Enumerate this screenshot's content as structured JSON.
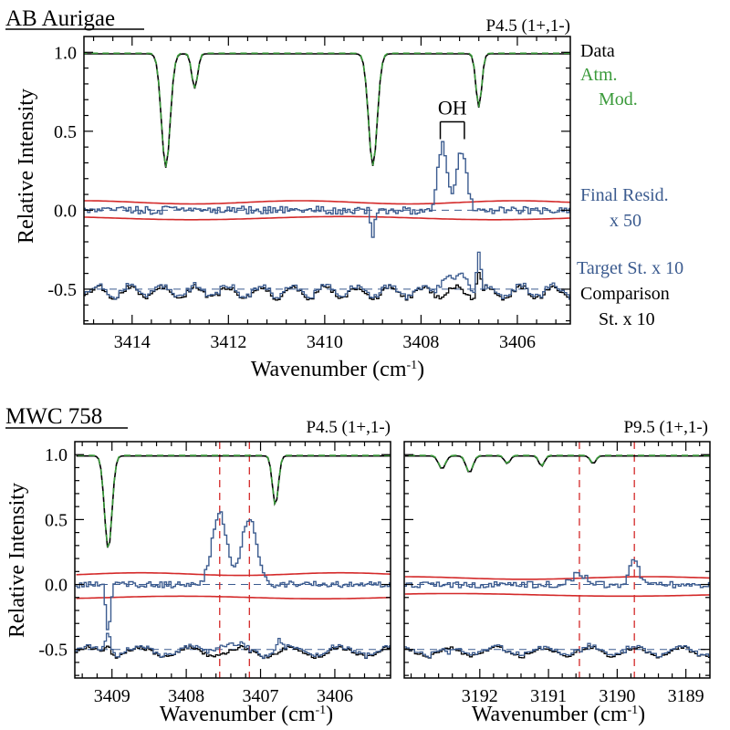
{
  "colors": {
    "data": "#000000",
    "model": "#3a9a3a",
    "residual": "#3b5b8f",
    "envelope": "#d42a2a",
    "comparison": "#000000",
    "guide": "#d42a2a"
  },
  "chart_data": [
    {
      "type": "line",
      "title": "AB Aurigae",
      "transition": "P4.5 (1+,1-)",
      "xlabel": "Wavenumber (cm",
      "xlabel_sup": "-1",
      "xlabel_end": ")",
      "ylabel": "Relative Intensity",
      "xlim": [
        3415.0,
        3404.9
      ],
      "ylim": [
        -0.72,
        1.1
      ],
      "x_reversed": true,
      "xticks": [
        "3414",
        "3412",
        "3410",
        "3408",
        "3406"
      ],
      "xtick_values": [
        3414,
        3412,
        3410,
        3408,
        3406
      ],
      "yticks": [
        "1.0",
        "0.5",
        "0.0",
        "-0.5"
      ],
      "ytick_values": [
        1.0,
        0.5,
        0.0,
        -0.5
      ],
      "annotation": "OH",
      "annotation_x": [
        3407.6,
        3407.1
      ],
      "legend": [
        {
          "text": "Data",
          "color": "#000000"
        },
        {
          "text": "Atm.",
          "color": "#3a9a3a"
        },
        {
          "text": "Mod.",
          "color": "#3a9a3a"
        },
        {
          "text": "Final Resid.",
          "color": "#3b5b8f"
        },
        {
          "text": "x 50",
          "color": "#3b5b8f"
        },
        {
          "text": "Target St. x 10",
          "color": "#3b5b8f"
        },
        {
          "text": "Comparison",
          "color": "#000000"
        },
        {
          "text": "St. x 10",
          "color": "#000000"
        }
      ],
      "baselines": [
        0.0,
        -0.5
      ],
      "envelope": {
        "upper": 0.05,
        "lower": -0.05
      },
      "atm_lines": [
        {
          "x": 3413.3,
          "depth": 0.72,
          "width": 0.09
        },
        {
          "x": 3412.7,
          "depth": 0.22,
          "width": 0.06
        },
        {
          "x": 3409.0,
          "depth": 0.71,
          "width": 0.09
        },
        {
          "x": 3406.8,
          "depth": 0.34,
          "width": 0.06
        }
      ],
      "residual_features": [
        {
          "x": 3407.55,
          "amp": 0.41,
          "width": 0.1
        },
        {
          "x": 3407.15,
          "amp": 0.38,
          "width": 0.1
        },
        {
          "x": 3409.0,
          "amp": -0.18,
          "width": 0.04
        }
      ],
      "target_features": [
        {
          "x": 3407.5,
          "amp": 0.1,
          "width": 0.12
        },
        {
          "x": 3407.1,
          "amp": 0.09,
          "width": 0.12
        },
        {
          "x": 3406.8,
          "amp": 0.12,
          "width": 0.04
        }
      ],
      "comparison_features": [
        {
          "x": 3406.8,
          "amp": 0.14,
          "width": 0.04
        }
      ],
      "step": 0.05,
      "noise": 0.025
    },
    {
      "type": "line",
      "title": "MWC 758",
      "transition": "P4.5 (1+,1-)",
      "xlabel": "Wavenumber (cm",
      "xlabel_sup": "-1",
      "xlabel_end": ")",
      "ylabel": "Relative Intensity",
      "xlim": [
        3409.5,
        3405.25
      ],
      "ylim": [
        -0.72,
        1.1
      ],
      "x_reversed": true,
      "xticks": [
        "3409",
        "3408",
        "3407",
        "3406"
      ],
      "xtick_values": [
        3409,
        3408,
        3407,
        3406
      ],
      "yticks": [
        "1.0",
        "0.5",
        "0.0",
        "-0.5"
      ],
      "ytick_values": [
        1.0,
        0.5,
        0.0,
        -0.5
      ],
      "guides": [
        3407.55,
        3407.15
      ],
      "baselines": [
        0.0,
        -0.5
      ],
      "envelope": {
        "upper": 0.08,
        "lower": -0.1
      },
      "atm_lines": [
        {
          "x": 3409.05,
          "depth": 0.72,
          "width": 0.05
        },
        {
          "x": 3406.8,
          "depth": 0.38,
          "width": 0.04
        }
      ],
      "residual_features": [
        {
          "x": 3407.55,
          "amp": 0.55,
          "width": 0.1
        },
        {
          "x": 3407.15,
          "amp": 0.52,
          "width": 0.1
        },
        {
          "x": 3409.05,
          "amp": -0.35,
          "width": 0.03
        }
      ],
      "target_features": [
        {
          "x": 3409.05,
          "amp": 0.08,
          "width": 0.04
        },
        {
          "x": 3407.5,
          "amp": 0.05,
          "width": 0.15
        },
        {
          "x": 3406.75,
          "amp": 0.1,
          "width": 0.03
        }
      ],
      "comparison_features": [
        {
          "x": 3409.05,
          "amp": 0.06,
          "width": 0.04
        }
      ],
      "step": 0.03,
      "noise": 0.025
    },
    {
      "type": "line",
      "title": "",
      "transition": "P9.5 (1+,1-)",
      "xlabel": "Wavenumber (cm",
      "xlabel_sup": "-1",
      "xlabel_end": ")",
      "ylabel": "",
      "xlim": [
        3193.1,
        3188.65
      ],
      "ylim": [
        -0.72,
        1.1
      ],
      "x_reversed": true,
      "xticks": [
        "3192",
        "3191",
        "3190",
        "3189"
      ],
      "xtick_values": [
        3192,
        3191,
        3190,
        3189
      ],
      "yticks": [],
      "ytick_values": [],
      "guides": [
        3190.55,
        3189.75
      ],
      "baselines": [
        0.0,
        -0.5
      ],
      "envelope": {
        "upper": 0.05,
        "lower": -0.08
      },
      "atm_lines": [
        {
          "x": 3192.55,
          "depth": 0.1,
          "width": 0.05
        },
        {
          "x": 3192.15,
          "depth": 0.13,
          "width": 0.05
        },
        {
          "x": 3191.6,
          "depth": 0.06,
          "width": 0.04
        },
        {
          "x": 3191.1,
          "depth": 0.08,
          "width": 0.04
        },
        {
          "x": 3190.35,
          "depth": 0.06,
          "width": 0.04
        }
      ],
      "residual_features": [
        {
          "x": 3189.75,
          "amp": 0.2,
          "width": 0.06
        },
        {
          "x": 3190.55,
          "amp": 0.08,
          "width": 0.1
        }
      ],
      "target_features": [
        {
          "x": 3192.45,
          "amp": -0.05,
          "width": 0.05
        }
      ],
      "comparison_features": [],
      "step": 0.04,
      "noise": 0.025
    }
  ]
}
